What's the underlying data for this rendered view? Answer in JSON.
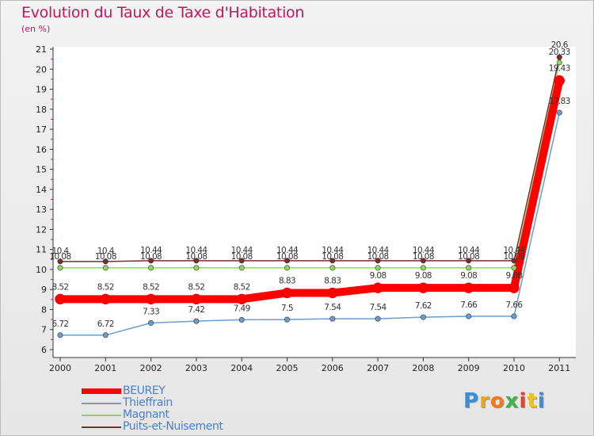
{
  "title": "Evolution du Taux de Taxe d'Habitation",
  "unit_label": "(en %)",
  "logo_text": "Proxiti",
  "chart_data": {
    "type": "line",
    "title": "Evolution du Taux de Taxe d'Habitation",
    "ylabel": "(en %)",
    "xlabel": "",
    "ylim": [
      6,
      21
    ],
    "yticks": [
      "6",
      "7",
      "8",
      "9",
      "10",
      "11",
      "12",
      "13",
      "14",
      "15",
      "16",
      "17",
      "18",
      "19",
      "20",
      "21"
    ],
    "categories": [
      "2000",
      "2001",
      "2002",
      "2003",
      "2004",
      "2005",
      "2006",
      "2007",
      "2008",
      "2009",
      "2010",
      "2011"
    ],
    "series": [
      {
        "name": "BEUREY",
        "color": "#ff0000",
        "values": [
          8.52,
          8.52,
          8.52,
          8.52,
          8.52,
          8.83,
          8.83,
          9.08,
          9.08,
          9.08,
          9.08,
          19.43
        ],
        "labels": [
          "8.52",
          "8.52",
          "8.52",
          "8.52",
          "8.52",
          "8.83",
          "8.83",
          "9.08",
          "9.08",
          "9.08",
          "9.08",
          "19.43"
        ]
      },
      {
        "name": "Thieffrain",
        "color": "#6b9dcf",
        "values": [
          6.72,
          6.72,
          7.33,
          7.42,
          7.49,
          7.5,
          7.54,
          7.54,
          7.62,
          7.66,
          7.66,
          17.83
        ],
        "labels": [
          "6.72",
          "6.72",
          "7.33",
          "7.42",
          "7.49",
          "7.5",
          "7.54",
          "7.54",
          "7.62",
          "7.66",
          "7.66",
          "17.83"
        ]
      },
      {
        "name": "Magnant",
        "color": "#90d85a",
        "values": [
          10.08,
          10.08,
          10.08,
          10.08,
          10.08,
          10.08,
          10.08,
          10.08,
          10.08,
          10.08,
          10.08,
          20.33
        ],
        "labels": [
          "10.08",
          "10.08",
          "10.08",
          "10.08",
          "10.08",
          "10.08",
          "10.08",
          "10.08",
          "10.08",
          "10.08",
          "10.08",
          "20.33"
        ]
      },
      {
        "name": "Puits-et-Nuisement",
        "color": "#7b2b34",
        "values": [
          10.4,
          10.4,
          10.44,
          10.44,
          10.44,
          10.44,
          10.44,
          10.44,
          10.44,
          10.44,
          10.44,
          20.6
        ],
        "labels": [
          "10.4",
          "10.4",
          "10.44",
          "10.44",
          "10.44",
          "10.44",
          "10.44",
          "10.44",
          "10.44",
          "10.44",
          "10.44",
          "20.6"
        ]
      }
    ]
  }
}
